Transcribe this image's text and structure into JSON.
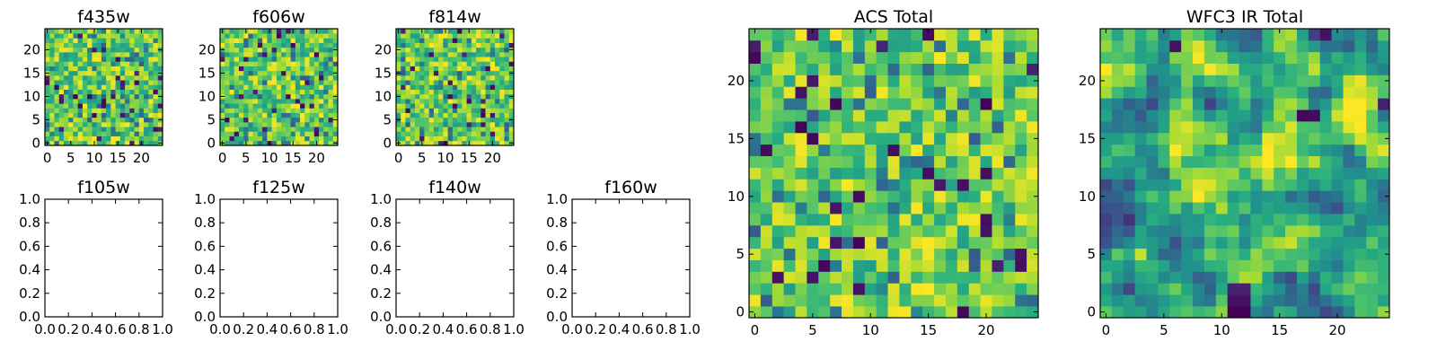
{
  "figure": {
    "background": "#ffffff",
    "colormap": "viridis"
  },
  "chart_data": [
    {
      "type": "heatmap",
      "title": "f435w",
      "grid": [
        25,
        25
      ],
      "xticks": [
        0,
        5,
        10,
        15,
        20
      ],
      "yticks": [
        0,
        5,
        10,
        15,
        20
      ],
      "xlim": [
        -0.5,
        24.5
      ],
      "ylim": [
        -0.5,
        24.5
      ],
      "values": "pixel noise, mostly upper-colormap (green/yellow) with scattered low (dark) pixels"
    },
    {
      "type": "heatmap",
      "title": "f606w",
      "grid": [
        25,
        25
      ],
      "xticks": [
        0,
        5,
        10,
        15,
        20
      ],
      "yticks": [
        0,
        5,
        10,
        15,
        20
      ],
      "xlim": [
        -0.5,
        24.5
      ],
      "ylim": [
        -0.5,
        24.5
      ],
      "values": "pixel noise, mostly upper-colormap (green/yellow) with scattered low (dark) pixels"
    },
    {
      "type": "heatmap",
      "title": "f814w",
      "grid": [
        25,
        25
      ],
      "xticks": [
        0,
        5,
        10,
        15,
        20
      ],
      "yticks": [
        0,
        5,
        10,
        15,
        20
      ],
      "xlim": [
        -0.5,
        24.5
      ],
      "ylim": [
        -0.5,
        24.5
      ],
      "values": "pixel noise, mostly upper-colormap (green/yellow) with scattered low (dark) pixels"
    },
    {
      "type": "scatter",
      "title": "f105w",
      "xticks": [
        "0.0",
        "0.2",
        "0.4",
        "0.6",
        "0.8",
        "1.0"
      ],
      "yticks": [
        "0.0",
        "0.2",
        "0.4",
        "0.6",
        "0.8",
        "1.0"
      ],
      "xlim": [
        0,
        1
      ],
      "ylim": [
        0,
        1
      ],
      "x": [],
      "y": []
    },
    {
      "type": "scatter",
      "title": "f125w",
      "xticks": [
        "0.0",
        "0.2",
        "0.4",
        "0.6",
        "0.8",
        "1.0"
      ],
      "yticks": [
        "0.0",
        "0.2",
        "0.4",
        "0.6",
        "0.8",
        "1.0"
      ],
      "xlim": [
        0,
        1
      ],
      "ylim": [
        0,
        1
      ],
      "x": [],
      "y": []
    },
    {
      "type": "scatter",
      "title": "f140w",
      "xticks": [
        "0.0",
        "0.2",
        "0.4",
        "0.6",
        "0.8",
        "1.0"
      ],
      "yticks": [
        "0.0",
        "0.2",
        "0.4",
        "0.6",
        "0.8",
        "1.0"
      ],
      "xlim": [
        0,
        1
      ],
      "ylim": [
        0,
        1
      ],
      "x": [],
      "y": []
    },
    {
      "type": "scatter",
      "title": "f160w",
      "xticks": [
        "0.0",
        "0.2",
        "0.4",
        "0.6",
        "0.8",
        "1.0"
      ],
      "yticks": [
        "0.0",
        "0.2",
        "0.4",
        "0.6",
        "0.8",
        "1.0"
      ],
      "xlim": [
        0,
        1
      ],
      "ylim": [
        0,
        1
      ],
      "x": [],
      "y": []
    },
    {
      "type": "heatmap",
      "title": "ACS Total",
      "grid": [
        25,
        25
      ],
      "xticks": [
        0,
        5,
        10,
        15,
        20
      ],
      "yticks": [
        0,
        5,
        10,
        15,
        20
      ],
      "xlim": [
        -0.5,
        24.5
      ],
      "ylim": [
        -0.5,
        24.5
      ],
      "values": "pixel noise, mostly green/yellow with scattered dark-purple low pixels"
    },
    {
      "type": "heatmap",
      "title": "WFC3 IR Total",
      "grid": [
        25,
        25
      ],
      "xticks": [
        0,
        5,
        10,
        15,
        20
      ],
      "yticks": [
        0,
        5,
        10,
        15,
        20
      ],
      "xlim": [
        -0.5,
        24.5
      ],
      "ylim": [
        -0.5,
        24.5
      ],
      "values": "smoothed noise with a bright yellow band near y=12-15 and a dark low-value block near x=11-12, y=0-2"
    }
  ]
}
